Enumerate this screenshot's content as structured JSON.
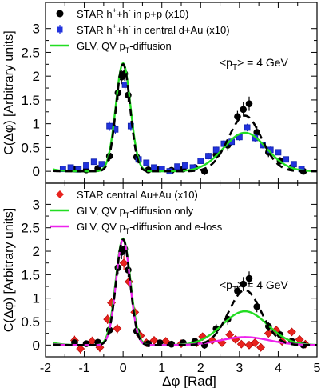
{
  "colors": {
    "star_pp": "#000000",
    "star_dau": "#2233dd",
    "star_auau": "#e8231e",
    "glv_qv": "#22dd22",
    "glv_qv_eloss": "#ee22ee",
    "dashed": "#000000"
  },
  "chart_data": [
    {
      "type": "scatter",
      "panel": "top",
      "xlim": [
        -2,
        5
      ],
      "ylim": [
        -0.25,
        3.55
      ],
      "ylabel": "C(Δφ) [Arbitrary units]",
      "yticks": [
        0,
        0.5,
        1,
        1.5,
        2,
        2.5,
        3
      ],
      "ytick_labels": [
        "0",
        "0.5",
        "1",
        "1.5",
        "2",
        "2.5",
        "3"
      ],
      "annotation": "<pT> = 4 GeV",
      "legend_position": "top-left",
      "series": [
        {
          "name": "STAR h++h- in p+p (x10)",
          "label_parts": [
            "STAR h",
            "+",
            "+h",
            "-",
            " in p+p (x10)"
          ],
          "marker": "circle",
          "color": "#000000",
          "points": [
            {
              "x": -1.25,
              "y": 0.05,
              "err": 0.05
            },
            {
              "x": -0.95,
              "y": 0.03,
              "err": 0.05
            },
            {
              "x": -0.65,
              "y": 0.06,
              "err": 0.06
            },
            {
              "x": -0.35,
              "y": 0.32,
              "err": 0.1
            },
            {
              "x": -0.13,
              "y": 1.65,
              "err": 0.15
            },
            {
              "x": -0.04,
              "y": 1.98,
              "err": 0.15
            },
            {
              "x": 0.04,
              "y": 2.05,
              "err": 0.15
            },
            {
              "x": 0.13,
              "y": 1.6,
              "err": 0.15
            },
            {
              "x": 0.35,
              "y": 0.3,
              "err": 0.1
            },
            {
              "x": 0.65,
              "y": 0.03,
              "err": 0.06
            },
            {
              "x": 0.95,
              "y": 0.05,
              "err": 0.05
            },
            {
              "x": 1.25,
              "y": 0.02,
              "err": 0.05
            },
            {
              "x": 1.55,
              "y": 0.05,
              "err": 0.05
            },
            {
              "x": 1.85,
              "y": 0.08,
              "err": 0.06
            },
            {
              "x": 2.1,
              "y": 0.0,
              "err": 0.08
            },
            {
              "x": 2.4,
              "y": 0.35,
              "err": 0.1
            },
            {
              "x": 2.7,
              "y": 0.55,
              "err": 0.12
            },
            {
              "x": 2.95,
              "y": 1.15,
              "err": 0.12
            },
            {
              "x": 3.1,
              "y": 1.3,
              "err": 0.15
            },
            {
              "x": 3.25,
              "y": 1.42,
              "err": 0.15
            },
            {
              "x": 3.45,
              "y": 0.82,
              "err": 0.12
            },
            {
              "x": 3.75,
              "y": 0.4,
              "err": 0.1
            },
            {
              "x": 4.05,
              "y": 0.22,
              "err": 0.08
            },
            {
              "x": 4.35,
              "y": 0.08,
              "err": 0.06
            },
            {
              "x": 4.65,
              "y": 0.0,
              "err": 0.05
            }
          ]
        },
        {
          "name": "STAR h++h- in central d+Au (x10)",
          "label_parts": [
            "STAR h",
            "+",
            "+h",
            "-",
            " in central d+Au (x10)"
          ],
          "marker": "square",
          "color": "#2233dd",
          "points": [
            {
              "x": -1.55,
              "y": 0.05,
              "err": 0.04
            },
            {
              "x": -1.35,
              "y": 0.08,
              "err": 0.04
            },
            {
              "x": -1.15,
              "y": 0.04,
              "err": 0.04
            },
            {
              "x": -0.95,
              "y": 0.12,
              "err": 0.05
            },
            {
              "x": -0.75,
              "y": 0.2,
              "err": 0.06
            },
            {
              "x": -0.55,
              "y": 0.15,
              "err": 0.06
            },
            {
              "x": -0.35,
              "y": 0.95,
              "err": 0.1
            },
            {
              "x": -0.2,
              "y": 0.88,
              "err": 0.1
            },
            {
              "x": 0.05,
              "y": 1.82,
              "err": 0.1
            },
            {
              "x": 0.2,
              "y": 0.95,
              "err": 0.1
            },
            {
              "x": 0.4,
              "y": 0.25,
              "err": 0.06
            },
            {
              "x": 0.6,
              "y": 0.18,
              "err": 0.05
            },
            {
              "x": 0.8,
              "y": 0.08,
              "err": 0.05
            },
            {
              "x": 1.0,
              "y": 0.05,
              "err": 0.05
            },
            {
              "x": 1.2,
              "y": 0.0,
              "err": 0.05
            },
            {
              "x": 1.4,
              "y": 0.1,
              "err": 0.05
            },
            {
              "x": 1.6,
              "y": 0.12,
              "err": 0.05
            },
            {
              "x": 1.8,
              "y": 0.08,
              "err": 0.05
            },
            {
              "x": 2.0,
              "y": 0.22,
              "err": 0.06
            },
            {
              "x": 2.2,
              "y": 0.32,
              "err": 0.07
            },
            {
              "x": 2.4,
              "y": 0.45,
              "err": 0.07
            },
            {
              "x": 2.6,
              "y": 0.58,
              "err": 0.08
            },
            {
              "x": 2.8,
              "y": 0.62,
              "err": 0.08
            },
            {
              "x": 3.0,
              "y": 0.72,
              "err": 0.08
            },
            {
              "x": 3.2,
              "y": 0.92,
              "err": 0.08
            },
            {
              "x": 3.4,
              "y": 0.7,
              "err": 0.08
            },
            {
              "x": 3.6,
              "y": 0.55,
              "err": 0.07
            },
            {
              "x": 3.8,
              "y": 0.45,
              "err": 0.07
            },
            {
              "x": 4.0,
              "y": 0.4,
              "err": 0.06
            },
            {
              "x": 4.2,
              "y": 0.25,
              "err": 0.06
            },
            {
              "x": 4.4,
              "y": 0.15,
              "err": 0.05
            },
            {
              "x": 4.6,
              "y": 0.05,
              "err": 0.05
            }
          ]
        },
        {
          "name": "GLV, QV pT-diffusion",
          "label_parts": [
            "GLV, QV p",
            "T",
            "-diffusion"
          ],
          "marker": "line",
          "color": "#22dd22",
          "curve": {
            "baseline": 0.0,
            "near_amp": 2.27,
            "near_sigma": 0.19,
            "away_amp": 0.81,
            "away_mu": 3.1416,
            "away_sigma": 0.55
          }
        },
        {
          "name": "dashed reference",
          "marker": "dashed",
          "color": "#000000",
          "curve": {
            "baseline": 0.0,
            "near_amp": 2.25,
            "near_sigma": 0.18,
            "away_amp": 1.17,
            "away_mu": 3.1416,
            "away_sigma": 0.42
          }
        }
      ]
    },
    {
      "type": "scatter",
      "panel": "bottom",
      "xlim": [
        -2,
        5
      ],
      "ylim": [
        -0.25,
        3.45
      ],
      "xlabel": "Δφ  [Rad]",
      "ylabel": "C(Δφ) [Arbitrary units]",
      "xticks": [
        -2,
        -1.5,
        -1,
        -0.5,
        0,
        0.5,
        1,
        1.5,
        2,
        2.5,
        3,
        3.5,
        4,
        4.5,
        5
      ],
      "xtick_labels": [
        "-2",
        "-1",
        "0",
        "1",
        "2",
        "3",
        "4",
        "5"
      ],
      "xtick_label_values": [
        -2,
        -1,
        0,
        1,
        2,
        3,
        4,
        5
      ],
      "yticks": [
        0,
        0.5,
        1,
        1.5,
        2,
        2.5,
        3
      ],
      "ytick_labels": [
        "0",
        "0.5",
        "1",
        "1.5",
        "2",
        "2.5",
        "3"
      ],
      "annotation": "<pT> = 4 GeV",
      "legend_position": "top-left",
      "series": [
        {
          "name": "STAR central Au+Au (x10)",
          "label_parts": [
            "STAR central Au+Au (x10)"
          ],
          "marker": "diamond",
          "color": "#e8231e",
          "points": [
            {
              "x": -1.25,
              "y": 0.1,
              "err": 0.1
            },
            {
              "x": -1.1,
              "y": -0.08,
              "err": 0.1
            },
            {
              "x": -0.8,
              "y": 0.08,
              "err": 0.1
            },
            {
              "x": -0.6,
              "y": -0.05,
              "err": 0.1
            },
            {
              "x": -0.4,
              "y": 0.55,
              "err": 0.1
            },
            {
              "x": -0.3,
              "y": 0.9,
              "err": 0.1
            },
            {
              "x": -0.15,
              "y": 0.35,
              "err": 0.1
            },
            {
              "x": 0.02,
              "y": 1.75,
              "err": 0.15
            },
            {
              "x": 0.15,
              "y": 1.35,
              "err": 0.12
            },
            {
              "x": 0.3,
              "y": 0.7,
              "err": 0.1
            },
            {
              "x": 0.45,
              "y": 0.2,
              "err": 0.1
            },
            {
              "x": 0.6,
              "y": 0.05,
              "err": 0.08
            },
            {
              "x": 0.8,
              "y": 0.1,
              "err": 0.08
            },
            {
              "x": 1.1,
              "y": 0.08,
              "err": 0.08
            },
            {
              "x": 1.5,
              "y": 0.03,
              "err": 0.08
            },
            {
              "x": 1.9,
              "y": 0.05,
              "err": 0.08
            },
            {
              "x": 2.05,
              "y": 0.18,
              "err": 0.08
            },
            {
              "x": 2.3,
              "y": 0.1,
              "err": 0.08
            },
            {
              "x": 2.55,
              "y": 0.05,
              "err": 0.08
            },
            {
              "x": 2.75,
              "y": 0.22,
              "err": 0.08
            },
            {
              "x": 2.9,
              "y": 0.12,
              "err": 0.08
            },
            {
              "x": 3.05,
              "y": 0.02,
              "err": 0.08
            },
            {
              "x": 3.25,
              "y": 0.0,
              "err": 0.08
            },
            {
              "x": 3.4,
              "y": 0.05,
              "err": 0.08
            },
            {
              "x": 3.55,
              "y": -0.05,
              "err": 0.08
            },
            {
              "x": 3.75,
              "y": 0.25,
              "err": 0.08
            },
            {
              "x": 3.95,
              "y": 0.32,
              "err": 0.08
            },
            {
              "x": 4.1,
              "y": 0.08,
              "err": 0.08
            },
            {
              "x": 4.35,
              "y": 0.28,
              "err": 0.08
            },
            {
              "x": 4.55,
              "y": 0.12,
              "err": 0.08
            },
            {
              "x": 4.7,
              "y": 0.02,
              "err": 0.08
            }
          ]
        },
        {
          "name": "STAR h++h- in p+p (x10)",
          "marker": "circle",
          "color": "#000000",
          "in_legend": false,
          "points": [
            {
              "x": -1.25,
              "y": 0.05,
              "err": 0.05
            },
            {
              "x": -0.95,
              "y": 0.03,
              "err": 0.05
            },
            {
              "x": -0.65,
              "y": 0.06,
              "err": 0.06
            },
            {
              "x": -0.35,
              "y": 0.32,
              "err": 0.1
            },
            {
              "x": -0.13,
              "y": 1.65,
              "err": 0.15
            },
            {
              "x": -0.04,
              "y": 1.98,
              "err": 0.15
            },
            {
              "x": 0.04,
              "y": 2.05,
              "err": 0.15
            },
            {
              "x": 0.13,
              "y": 1.6,
              "err": 0.15
            },
            {
              "x": 0.35,
              "y": 0.3,
              "err": 0.1
            },
            {
              "x": 0.65,
              "y": 0.03,
              "err": 0.06
            },
            {
              "x": 0.95,
              "y": 0.05,
              "err": 0.05
            },
            {
              "x": 1.25,
              "y": 0.02,
              "err": 0.05
            },
            {
              "x": 1.55,
              "y": 0.05,
              "err": 0.05
            },
            {
              "x": 1.85,
              "y": 0.08,
              "err": 0.06
            },
            {
              "x": 2.1,
              "y": 0.0,
              "err": 0.08
            },
            {
              "x": 2.4,
              "y": 0.35,
              "err": 0.1
            },
            {
              "x": 2.7,
              "y": 0.55,
              "err": 0.12
            },
            {
              "x": 2.95,
              "y": 1.15,
              "err": 0.12
            },
            {
              "x": 3.1,
              "y": 1.3,
              "err": 0.15
            },
            {
              "x": 3.25,
              "y": 1.42,
              "err": 0.15
            },
            {
              "x": 3.45,
              "y": 0.82,
              "err": 0.12
            },
            {
              "x": 3.75,
              "y": 0.4,
              "err": 0.1
            },
            {
              "x": 4.05,
              "y": 0.22,
              "err": 0.08
            },
            {
              "x": 4.35,
              "y": 0.08,
              "err": 0.06
            },
            {
              "x": 4.65,
              "y": 0.0,
              "err": 0.05
            }
          ]
        },
        {
          "name": "GLV, QV pT-diffusion only",
          "label_parts": [
            "GLV, QV p",
            "T",
            "-diffusion only"
          ],
          "marker": "line",
          "color": "#22dd22",
          "curve": {
            "baseline": 0.0,
            "near_amp": 2.27,
            "near_sigma": 0.19,
            "away_amp": 0.72,
            "away_mu": 3.1416,
            "away_sigma": 0.58
          }
        },
        {
          "name": "GLV, QV pT-diffusion and e-loss",
          "label_parts": [
            "GLV, QV p",
            "T",
            "-diffusion and e-loss"
          ],
          "marker": "line",
          "color": "#ee22ee",
          "curve": {
            "baseline": 0.0,
            "near_amp": 2.25,
            "near_sigma": 0.18,
            "away_amp": 0.17,
            "away_mu": 3.1416,
            "away_sigma": 0.62
          }
        },
        {
          "name": "dashed reference",
          "marker": "dashed",
          "color": "#000000",
          "curve": {
            "baseline": 0.0,
            "near_amp": 2.25,
            "near_sigma": 0.18,
            "away_amp": 1.17,
            "away_mu": 3.1416,
            "away_sigma": 0.42
          }
        }
      ]
    }
  ]
}
